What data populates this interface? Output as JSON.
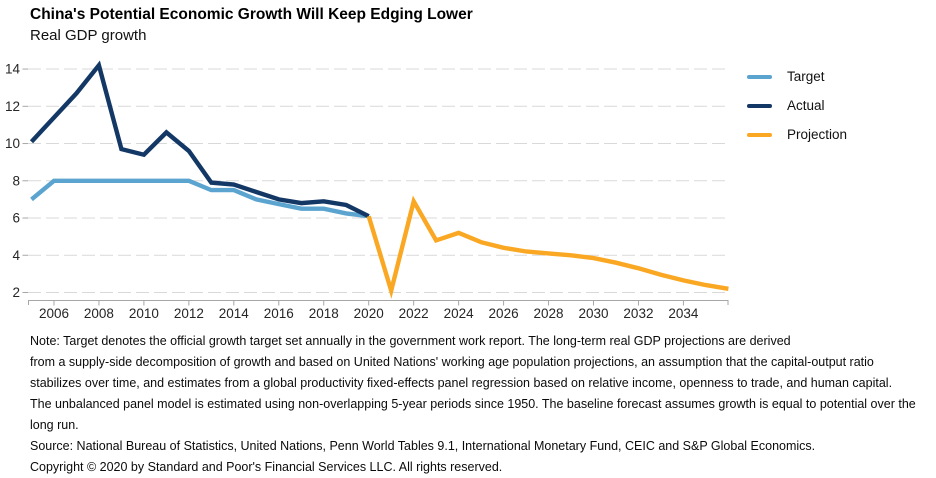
{
  "header": {
    "title": "China's Potential Economic Growth Will Keep Edging Lower",
    "subtitle": "Real GDP growth"
  },
  "legend": [
    {
      "label": "Target",
      "color": "#5BA4D0"
    },
    {
      "label": "Actual",
      "color": "#133866"
    },
    {
      "label": "Projection",
      "color": "#FAA823"
    }
  ],
  "chart_data": {
    "type": "line",
    "title": "China's Potential Economic Growth Will Keep Edging Lower",
    "subtitle": "Real GDP growth",
    "xlim": [
      2005,
      2036
    ],
    "ylim": [
      1.6,
      14.5
    ],
    "yticks": [
      2,
      4,
      6,
      8,
      10,
      12,
      14
    ],
    "xticks": [
      2006,
      2008,
      2010,
      2012,
      2014,
      2016,
      2018,
      2020,
      2022,
      2024,
      2026,
      2028,
      2030,
      2032,
      2034
    ],
    "grid": "horizontal-dashed",
    "legend_position": "right",
    "series": [
      {
        "name": "Target",
        "color": "#5BA4D0",
        "x": [
          2005,
          2006,
          2007,
          2008,
          2009,
          2010,
          2011,
          2012,
          2013,
          2014,
          2015,
          2016,
          2017,
          2018,
          2019,
          2020
        ],
        "values": [
          7.0,
          8.0,
          8.0,
          8.0,
          8.0,
          8.0,
          8.0,
          8.0,
          7.5,
          7.5,
          7.0,
          6.75,
          6.5,
          6.5,
          6.25,
          6.1
        ]
      },
      {
        "name": "Actual",
        "color": "#133866",
        "x": [
          2005,
          2006,
          2007,
          2008,
          2009,
          2010,
          2011,
          2012,
          2013,
          2014,
          2015,
          2016,
          2017,
          2018,
          2019,
          2020
        ],
        "values": [
          10.1,
          11.4,
          12.7,
          14.2,
          9.7,
          9.4,
          10.6,
          9.6,
          7.9,
          7.8,
          7.4,
          7.0,
          6.8,
          6.9,
          6.7,
          6.1
        ]
      },
      {
        "name": "Projection",
        "color": "#FAA823",
        "x": [
          2020,
          2021,
          2022,
          2023,
          2024,
          2025,
          2026,
          2027,
          2028,
          2029,
          2030,
          2031,
          2032,
          2033,
          2034,
          2035,
          2036
        ],
        "values": [
          6.1,
          2.1,
          6.9,
          4.8,
          5.2,
          4.7,
          4.4,
          4.2,
          4.1,
          4.0,
          3.85,
          3.6,
          3.3,
          2.95,
          2.65,
          2.4,
          2.2
        ]
      }
    ]
  },
  "notes": {
    "lines": [
      "Note: Target denotes the official growth target set annually in the government work report. The long-term real GDP projections are derived",
      "from a supply-side decomposition of growth and based on United Nations' working age population projections, an assumption that the capital-output ratio",
      "stabilizes over time, and estimates from a global productivity fixed-effects panel regression based on relative income, openness to trade, and human capital.",
      "The unbalanced panel model is estimated using non-overlapping 5-year periods since 1950. The baseline forecast assumes growth is equal to potential over the",
      "long run.",
      "Source: National Bureau of Statistics, United Nations, Penn World Tables 9.1, International Monetary Fund, CEIC and S&P Global Economics.",
      "Copyright © 2020 by Standard and Poor's Financial Services LLC. All rights reserved."
    ]
  }
}
